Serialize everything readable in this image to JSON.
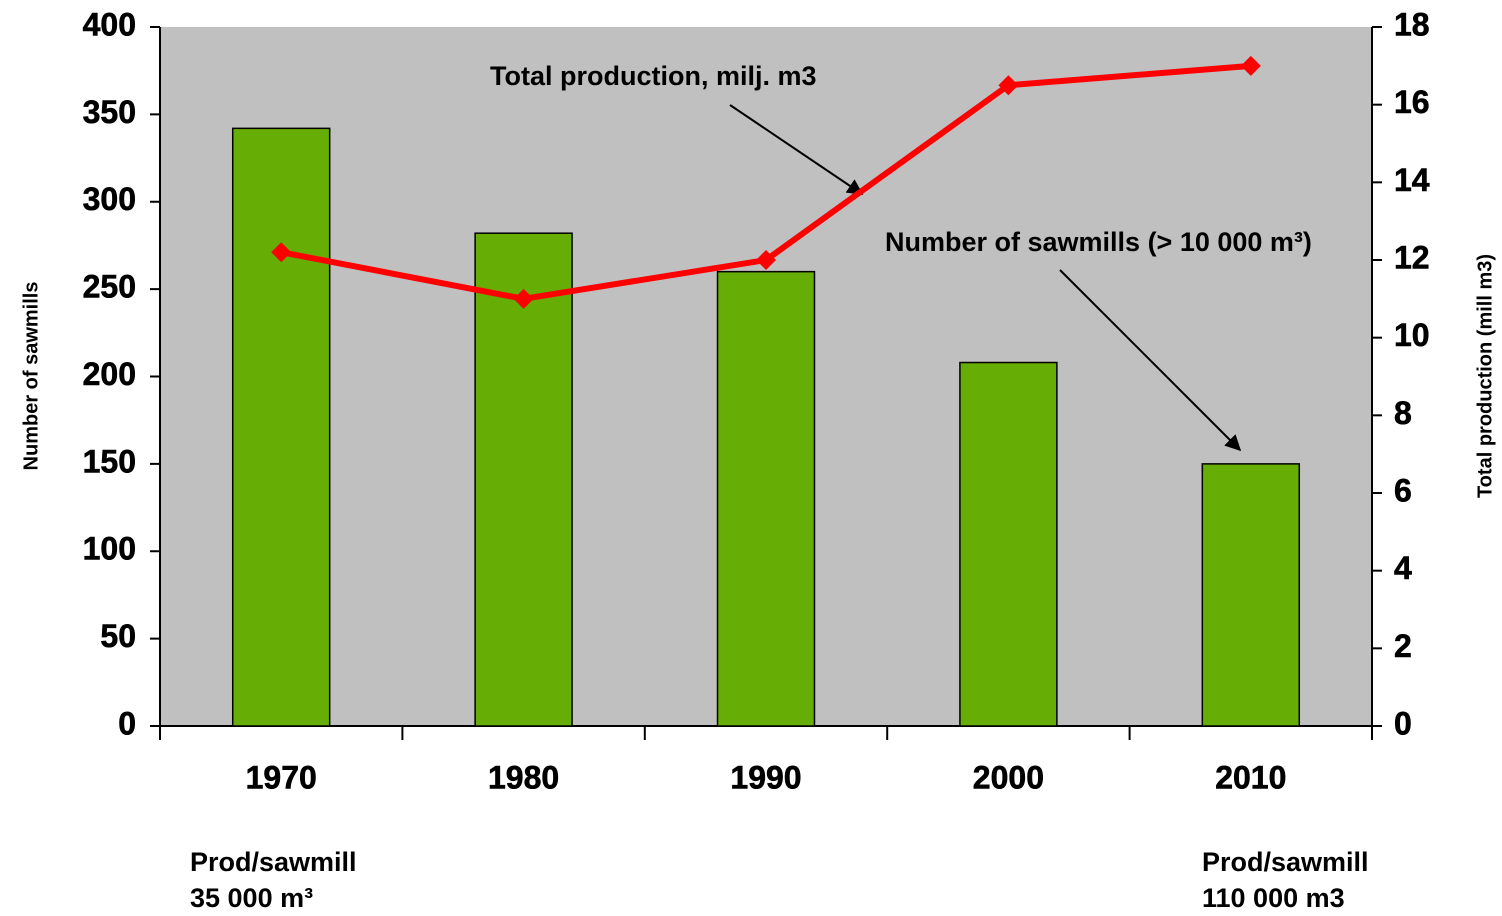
{
  "chart_data": {
    "type": "bar-line",
    "categories": [
      "1970",
      "1980",
      "1990",
      "2000",
      "2010"
    ],
    "series": [
      {
        "type": "bar",
        "color": "#66ad05",
        "values": [
          342,
          282,
          260,
          208,
          150
        ]
      },
      {
        "type": "line",
        "axis": "y2",
        "color": "#ff0000",
        "values": [
          12.2,
          11.0,
          12.0,
          16.5,
          17.0
        ]
      }
    ],
    "ylabel": "Number of sawmills",
    "y2label": "Total production (mill m3)",
    "ylim": [
      0,
      400
    ],
    "yticks": [
      0,
      50,
      100,
      150,
      200,
      250,
      300,
      350,
      400
    ],
    "y2lim": [
      0,
      18
    ],
    "y2ticks": [
      0,
      2,
      4,
      6,
      8,
      10,
      12,
      14,
      16,
      18
    ],
    "annotations": [
      "Total production, milj. m3",
      "Number of sawmills (> 10 000 m³)"
    ],
    "notes": [
      [
        "Prod/sawmill",
        "35 000 m³"
      ],
      [
        "Prod/sawmill",
        "110 000 m3"
      ]
    ]
  }
}
